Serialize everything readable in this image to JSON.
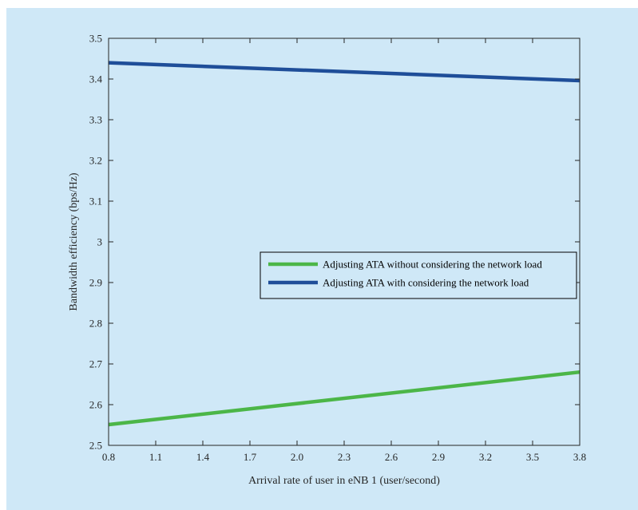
{
  "chart_data": {
    "type": "line",
    "title": "",
    "xlabel": "Arrival rate of user in eNB 1 (user/second)",
    "ylabel": "Bandwidth efficiency (bps/Hz)",
    "xlim": [
      0.8,
      3.8
    ],
    "ylim": [
      2.5,
      3.5
    ],
    "xticks": [
      "0.8",
      "1.1",
      "1.4",
      "1.7",
      "2.0",
      "2.3",
      "2.6",
      "2.9",
      "3.2",
      "3.5",
      "3.8"
    ],
    "yticks": [
      "2.5",
      "2.6",
      "2.7",
      "2.8",
      "2.9",
      "3",
      "3.1",
      "3.2",
      "3.3",
      "3.4",
      "3.5"
    ],
    "grid": false,
    "legend_position": "center-right",
    "series": [
      {
        "name": "Adjusting ATA without considering the network load",
        "color": "#4cb648",
        "x": [
          0.8,
          3.8
        ],
        "y": [
          2.551,
          2.68
        ]
      },
      {
        "name": "Adjusting ATA with considering the network load",
        "color": "#1f4e99",
        "x": [
          0.8,
          3.8
        ],
        "y": [
          3.44,
          3.396
        ]
      }
    ]
  }
}
